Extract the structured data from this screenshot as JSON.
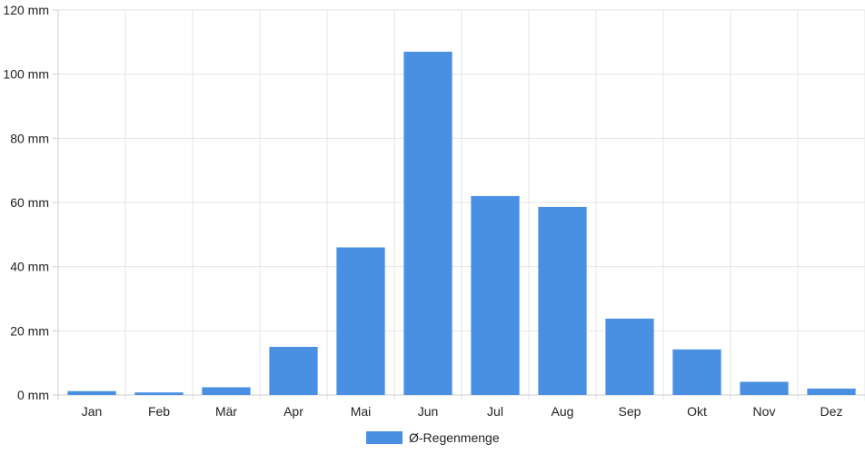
{
  "chart_data": {
    "type": "bar",
    "categories": [
      "Jan",
      "Feb",
      "Mär",
      "Apr",
      "Mai",
      "Jun",
      "Jul",
      "Aug",
      "Sep",
      "Okt",
      "Nov",
      "Dez"
    ],
    "series": [
      {
        "name": "Ø-Regenmenge",
        "color": "#4a90e2",
        "values": [
          1.2,
          0.8,
          2.4,
          15,
          46,
          107,
          62,
          58.6,
          23.8,
          14.2,
          4.1,
          2.0
        ]
      }
    ],
    "ylim": [
      0,
      120
    ],
    "yticks": [
      0,
      20,
      40,
      60,
      80,
      100,
      120
    ],
    "ytick_labels": [
      "0 mm",
      "20 mm",
      "40 mm",
      "60 mm",
      "80 mm",
      "100 mm",
      "120 mm"
    ],
    "grid": true,
    "legend_position": "bottom-center"
  },
  "colors": {
    "grid": "#e6e6e6",
    "axis": "#cccccc",
    "bar": "#4a90e2"
  }
}
